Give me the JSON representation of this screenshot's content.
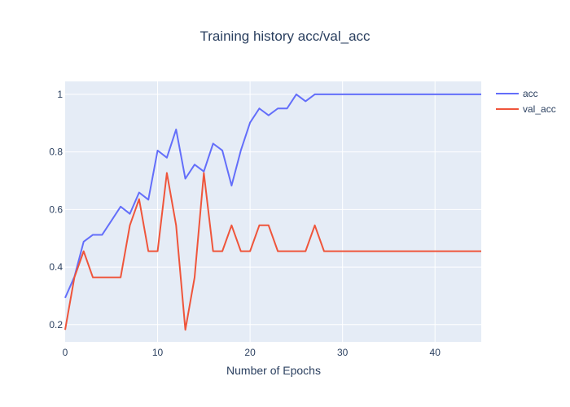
{
  "chart_data": {
    "type": "line",
    "title": "Training history acc/val_acc",
    "xlabel": "Number of Epochs",
    "ylabel": "",
    "xlim": [
      0,
      45
    ],
    "ylim": [
      0.14,
      1.045
    ],
    "xticks": [
      0,
      10,
      20,
      30,
      40
    ],
    "yticks": [
      0.2,
      0.4,
      0.6,
      0.8,
      1
    ],
    "grid": true,
    "legend_position": "top-right",
    "x": [
      0,
      1,
      2,
      3,
      4,
      5,
      6,
      7,
      8,
      9,
      10,
      11,
      12,
      13,
      14,
      15,
      16,
      17,
      18,
      19,
      20,
      21,
      22,
      23,
      24,
      25,
      26,
      27,
      28,
      29,
      30,
      31,
      32,
      33,
      34,
      35,
      36,
      37,
      38,
      39,
      40,
      41,
      42,
      43,
      44,
      45
    ],
    "series": [
      {
        "name": "acc",
        "color": "#636efa",
        "values": [
          0.293,
          0.366,
          0.488,
          0.512,
          0.512,
          0.561,
          0.61,
          0.585,
          0.659,
          0.634,
          0.805,
          0.78,
          0.878,
          0.707,
          0.756,
          0.732,
          0.829,
          0.805,
          0.683,
          0.805,
          0.902,
          0.951,
          0.927,
          0.951,
          0.951,
          1.0,
          0.976,
          1.0,
          1.0,
          1.0,
          1.0,
          1.0,
          1.0,
          1.0,
          1.0,
          1.0,
          1.0,
          1.0,
          1.0,
          1.0,
          1.0,
          1.0,
          1.0,
          1.0,
          1.0,
          1.0
        ]
      },
      {
        "name": "val_acc",
        "color": "#ef553b",
        "values": [
          0.182,
          0.364,
          0.455,
          0.364,
          0.364,
          0.364,
          0.364,
          0.545,
          0.636,
          0.455,
          0.455,
          0.727,
          0.545,
          0.182,
          0.364,
          0.727,
          0.455,
          0.455,
          0.545,
          0.455,
          0.455,
          0.545,
          0.545,
          0.455,
          0.455,
          0.455,
          0.455,
          0.545,
          0.455,
          0.455,
          0.455,
          0.455,
          0.455,
          0.455,
          0.455,
          0.455,
          0.455,
          0.455,
          0.455,
          0.455,
          0.455,
          0.455,
          0.455,
          0.455,
          0.455,
          0.455
        ]
      }
    ]
  },
  "colors": {
    "plot_background": "#e5ecf6",
    "grid": "#ffffff",
    "text": "#2a3f5f"
  }
}
